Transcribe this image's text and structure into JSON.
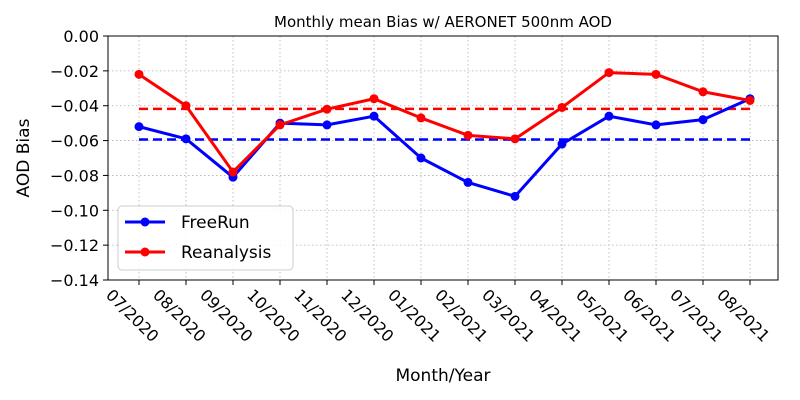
{
  "chart_data": {
    "type": "line",
    "title": "Monthly mean Bias w/ AERONET 500nm AOD",
    "xlabel": "Month/Year",
    "ylabel": "AOD Bias",
    "categories": [
      "07/2020",
      "08/2020",
      "09/2020",
      "10/2020",
      "11/2020",
      "12/2020",
      "01/2021",
      "02/2021",
      "03/2021",
      "04/2021",
      "05/2021",
      "06/2021",
      "07/2021",
      "08/2021"
    ],
    "ylim": [
      -0.14,
      0.0
    ],
    "yticks": [
      0.0,
      -0.02,
      -0.04,
      -0.06,
      -0.08,
      -0.1,
      -0.12,
      -0.14
    ],
    "ytick_labels": [
      "0.00",
      "−0.02",
      "−0.04",
      "−0.06",
      "−0.08",
      "−0.10",
      "−0.12",
      "−0.14"
    ],
    "grid": true,
    "legend_position": "lower-left",
    "series": [
      {
        "name": "FreeRun",
        "color": "#0000ff",
        "values": [
          -0.052,
          -0.059,
          -0.081,
          -0.05,
          -0.051,
          -0.046,
          -0.07,
          -0.084,
          -0.092,
          -0.062,
          -0.046,
          -0.051,
          -0.048,
          -0.036
        ],
        "mean": -0.0594
      },
      {
        "name": "Reanalysis",
        "color": "#ff0000",
        "values": [
          -0.022,
          -0.04,
          -0.078,
          -0.051,
          -0.042,
          -0.036,
          -0.047,
          -0.057,
          -0.059,
          -0.041,
          -0.021,
          -0.022,
          -0.032,
          -0.037
        ],
        "mean": -0.0418
      }
    ]
  }
}
